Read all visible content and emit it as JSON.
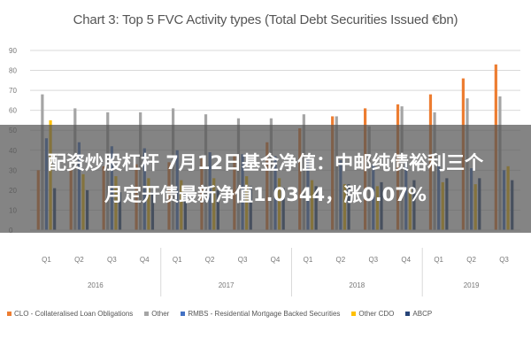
{
  "chart_data": {
    "type": "bar",
    "title": "Chart 3: Top 5 FVC Activity types (Total Debt Securities Issued €bn)",
    "ylim": [
      0,
      90
    ],
    "yticks": [
      0,
      10,
      20,
      30,
      40,
      50,
      60,
      70,
      80,
      90
    ],
    "categories": [
      "Q1",
      "Q2",
      "Q3",
      "Q4",
      "Q1",
      "Q2",
      "Q3",
      "Q4",
      "Q1",
      "Q2",
      "Q3",
      "Q4",
      "Q1",
      "Q2",
      "Q3"
    ],
    "groups": [
      {
        "label": "2016",
        "count": 4
      },
      {
        "label": "2017",
        "count": 4
      },
      {
        "label": "2018",
        "count": 4
      },
      {
        "label": "2019",
        "count": 3
      }
    ],
    "series": [
      {
        "name": "CLO - Collateralised Loan Obligations",
        "color": "#ed7d31",
        "values": [
          30,
          31,
          32,
          33,
          34,
          36,
          38,
          44,
          51,
          57,
          61,
          63,
          68,
          76,
          83
        ]
      },
      {
        "name": "Other",
        "color": "#a5a5a5",
        "values": [
          68,
          61,
          59,
          59,
          61,
          58,
          56,
          56,
          58,
          57,
          52,
          62,
          59,
          66,
          67
        ]
      },
      {
        "name": "RMBS - Residential Mortgage Backed Securities",
        "color": "#4472c4",
        "values": [
          46,
          44,
          42,
          41,
          40,
          39,
          38,
          37,
          36,
          35,
          33,
          34,
          32,
          31,
          30
        ]
      },
      {
        "name": "Other CDO",
        "color": "#ffc000",
        "values": [
          55,
          28,
          27,
          26,
          25,
          26,
          27,
          26,
          25,
          23,
          22,
          21,
          24,
          23,
          32
        ]
      },
      {
        "name": "ABCP",
        "color": "#264478",
        "values": [
          21,
          20,
          19,
          19,
          18,
          20,
          22,
          21,
          22,
          23,
          24,
          25,
          26,
          26,
          25
        ]
      }
    ],
    "grid": true,
    "legend": "bottom"
  },
  "overlay": {
    "line1": "配资炒股杠杆 7月12日基金净值：中邮纯债裕利三个",
    "line2": "月定开债最新净值1.0344，涨0.07%"
  }
}
